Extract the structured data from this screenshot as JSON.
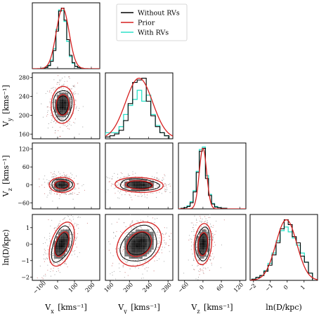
{
  "chart_data": {
    "type": "corner",
    "title": "",
    "variables": [
      {
        "key": "vx",
        "main": "V",
        "sub": "x",
        "unit": "[kms⁻¹]",
        "range": [
          -150,
          250
        ],
        "ticks": [
          -100,
          0,
          100,
          200
        ]
      },
      {
        "key": "vy",
        "main": "V",
        "sub": "y",
        "unit": "[kms⁻¹]",
        "range": [
          150,
          290
        ],
        "ticks": [
          160,
          200,
          240,
          280
        ]
      },
      {
        "key": "vz",
        "main": "V",
        "sub": "z",
        "unit": "[kms⁻¹]",
        "range": [
          -80,
          140
        ],
        "ticks": [
          -60,
          0,
          60,
          120
        ]
      },
      {
        "key": "lnd",
        "main": "ln(D/kpc)",
        "sub": "",
        "unit": "",
        "range": [
          -2.2,
          1.8
        ],
        "ticks": [
          -2,
          -1,
          0,
          1
        ]
      }
    ],
    "legend": {
      "position": "top-right",
      "entries": [
        {
          "label": "Without RVs",
          "color": "#000000"
        },
        {
          "label": "Prior",
          "color": "#d62020"
        },
        {
          "label": "With RVs",
          "color": "#2de0c8"
        }
      ]
    },
    "marginals": [
      {
        "var": "vx",
        "prior_mean": 30,
        "prior_sigma": 38,
        "hist_edges": [
          -90,
          150
        ],
        "without_rvs": [
          0.01,
          0.02,
          0.05,
          0.12,
          0.3,
          0.62,
          0.95,
          1.0,
          0.8,
          0.48,
          0.22,
          0.1,
          0.04,
          0.02,
          0.01
        ],
        "with_rvs": [
          0.01,
          0.03,
          0.06,
          0.14,
          0.33,
          0.65,
          0.97,
          0.96,
          0.78,
          0.45,
          0.2,
          0.09,
          0.04,
          0.02,
          0.01
        ]
      },
      {
        "var": "vy",
        "prior_mean": 220,
        "prior_sigma": 28,
        "hist_edges": [
          150,
          282
        ],
        "without_rvs": [
          0.03,
          0.05,
          0.08,
          0.14,
          0.3,
          0.58,
          0.93,
          0.97,
          1.0,
          0.62,
          0.38,
          0.2,
          0.1,
          0.05
        ],
        "with_rvs": [
          0.1,
          0.1,
          0.1,
          0.2,
          0.4,
          0.55,
          0.65,
          0.8,
          0.62,
          0.72,
          0.4,
          0.22,
          0.1,
          0.05
        ]
      },
      {
        "var": "vz",
        "prior_mean": 0,
        "prior_sigma": 12,
        "hist_edges": [
          -72,
          78
        ],
        "without_rvs": [
          0.01,
          0.02,
          0.04,
          0.1,
          0.28,
          0.6,
          0.95,
          1.0,
          0.5,
          0.22,
          0.08,
          0.03,
          0.02,
          0.01,
          0.01
        ],
        "with_rvs": [
          0.01,
          0.02,
          0.05,
          0.12,
          0.3,
          0.62,
          0.98,
          1.02,
          0.55,
          0.24,
          0.09,
          0.04,
          0.02,
          0.01,
          0.01
        ]
      },
      {
        "var": "lnd",
        "prior_mean": -0.05,
        "prior_sigma": 0.62,
        "hist_edges": [
          -2.1,
          1.5
        ],
        "without_rvs": [
          0.02,
          0.05,
          0.08,
          0.15,
          0.25,
          0.42,
          0.62,
          0.85,
          1.0,
          0.92,
          0.72,
          0.62,
          0.4,
          0.3,
          0.12
        ],
        "with_rvs": [
          0.02,
          0.05,
          0.08,
          0.16,
          0.28,
          0.45,
          0.65,
          0.82,
          0.88,
          0.8,
          0.7,
          0.58,
          0.45,
          0.3,
          0.12
        ]
      }
    ],
    "joints": [
      {
        "x": "vx",
        "y": "vy",
        "mean": [
          30,
          222
        ],
        "sigma": [
          38,
          22
        ],
        "rho": 0.05
      },
      {
        "x": "vx",
        "y": "vz",
        "mean": [
          25,
          0
        ],
        "sigma": [
          42,
          14
        ],
        "rho": 0.0
      },
      {
        "x": "vy",
        "y": "vz",
        "mean": [
          220,
          0
        ],
        "sigma": [
          28,
          14
        ],
        "rho": -0.1
      },
      {
        "x": "vx",
        "y": "lnd",
        "mean": [
          25,
          0
        ],
        "sigma": [
          42,
          0.75
        ],
        "rho": 0.45
      },
      {
        "x": "vy",
        "y": "lnd",
        "mean": [
          220,
          0
        ],
        "sigma": [
          26,
          0.75
        ],
        "rho": 0.25
      },
      {
        "x": "vz",
        "y": "lnd",
        "mean": [
          0,
          0
        ],
        "sigma": [
          16,
          0.7
        ],
        "rho": 0.15
      }
    ]
  }
}
